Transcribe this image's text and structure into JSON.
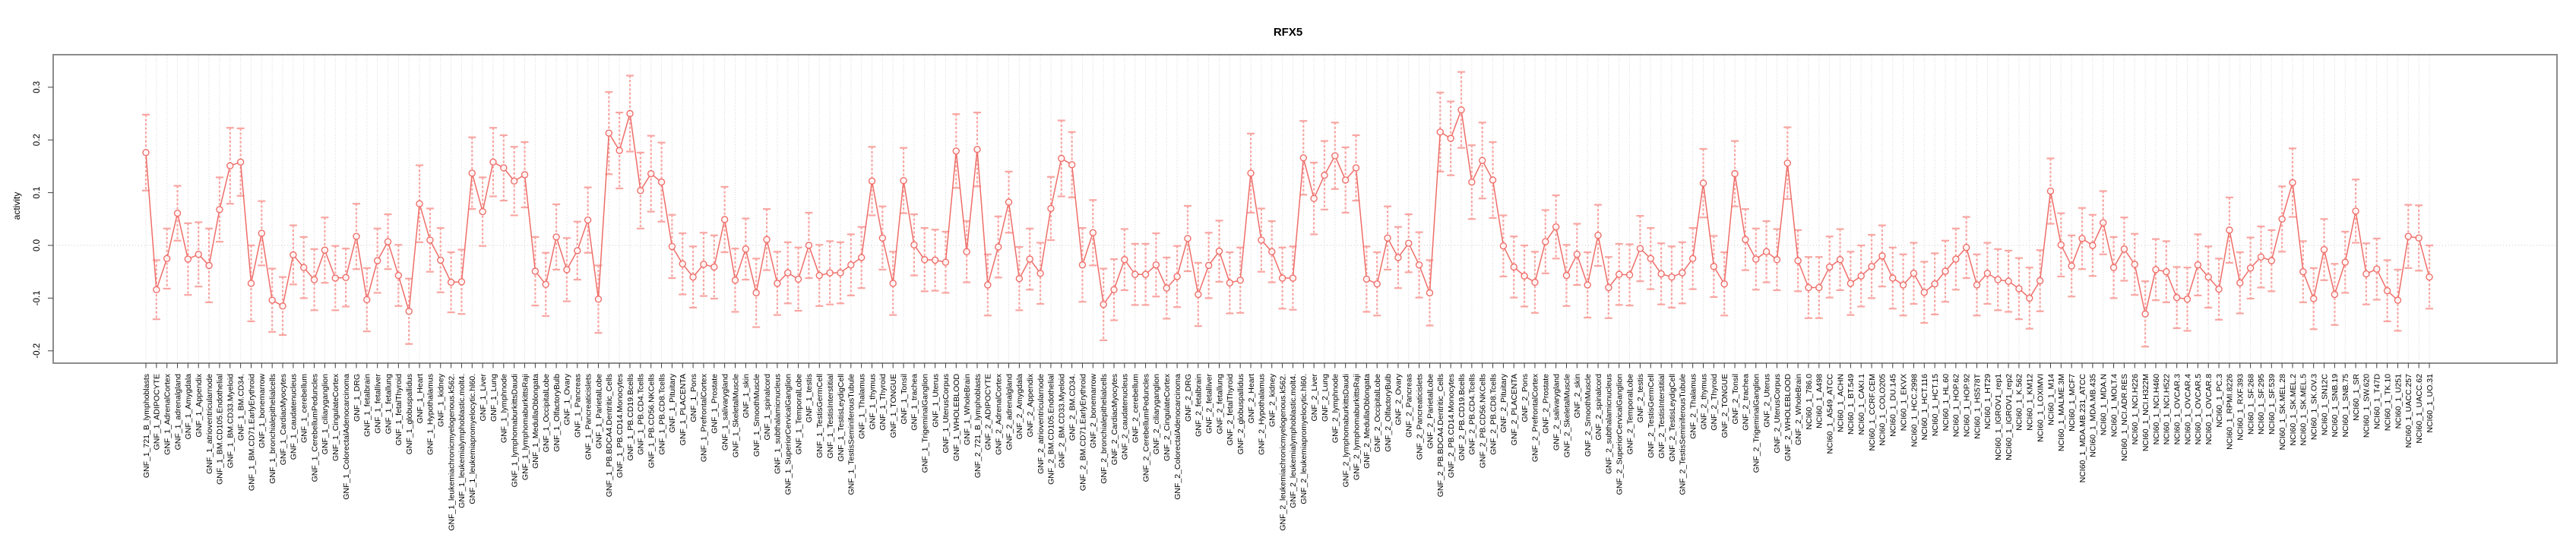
{
  "title": "RFX5",
  "chart_data": {
    "type": "line",
    "title": "RFX5",
    "xlabel": "",
    "ylabel": "activity",
    "ylim": [
      -0.223,
      0.362
    ],
    "grid": "vertical dashed gridline at every category; dotted horizontal line at 0",
    "legend_position": "none",
    "marker": "open-circle",
    "error_bars": true,
    "yticks": [
      {
        "v": 0.3,
        "label": "0.3"
      },
      {
        "v": 0.2,
        "label": "0.2"
      },
      {
        "v": 0.1,
        "label": "0.1"
      },
      {
        "v": 0.0,
        "label": "0.0"
      },
      {
        "v": -0.1,
        "label": "-0.1"
      },
      {
        "v": -0.2,
        "label": "-0.2"
      }
    ],
    "colors": {
      "series": "#ee6e69",
      "marker_fill": "#ffffff",
      "error_bar": "#f8a6a2",
      "grid": "#d9d9d9",
      "zero_line": "#c9c9c9",
      "frame": "#8c8c8c",
      "tick": "#404040",
      "text": "#000000",
      "background": "#ffffff"
    },
    "groups": [
      {
        "prefix": "GNF_1_",
        "names": [
          "721_B_lymphoblasts",
          "ADIPOCYTE",
          "AdrenalCortex",
          "adrenalgland",
          "Amygdala",
          "Appendix",
          "atrioventricularnode",
          "BM.CD105.Endothelial",
          "BM.CD33.Myeloid",
          "BM.CD34.",
          "BM.CD71.EarlyErythroid",
          "bonemarrow",
          "bronchialepithelialcells",
          "CardiacMyocytes",
          "caudatenucleus",
          "cerebellum",
          "CerebellumPeduncles",
          "ciliaryganglion",
          "CingulateCortex",
          "ColorectalAdenocarcinoma",
          "DRG",
          "fetalbrain",
          "fetalliver",
          "fetallung",
          "fetalThyroid",
          "globuspallidus",
          "Heart",
          "Hypothalamus",
          "kidney",
          "leukemiachronicmyelogenous.k562.",
          "leukemialymphoblastic.molt4.",
          "leukemiapromyelocytic.hl60.",
          "Liver",
          "Lung",
          "lymphnode",
          "lymphomaburkittsDaudi",
          "lymphomaburkittsRaji",
          "MedullaOblongata",
          "OccipitalLobe",
          "OlfactoryBulb",
          "Ovary",
          "Pancreas",
          "Pancreaticislets",
          "ParietalLobe",
          "PB.BDCA4.Dentritic_Cells",
          "PB.CD14.Monocytes",
          "PB.CD19.Bcells",
          "PB.CD4.Tcells",
          "PB.CD56.NKCells",
          "PB.CD8.Tcells",
          "Pituitary",
          "PLACENTA",
          "Pons",
          "PrefrontalCortex",
          "Prostate",
          "salivarygland",
          "SkeletalMuscle",
          "skin",
          "SmoothMuscle",
          "spinalcord",
          "subthalamicnucleus",
          "SuperiorCervicalGanglion",
          "TemporalLobe",
          "testis",
          "TestisGermCell",
          "TestisInterstitial",
          "TestisLeydigCell",
          "TestisSeminiferousTubule",
          "Thalamus",
          "thymus",
          "Thyroid",
          "TONGUE",
          "Tonsil",
          "trachea",
          "TrigeminalGanglion",
          "Uterus",
          "UterusCorpus",
          "WHOLEBLOOD",
          "WholeBrain"
        ]
      },
      {
        "prefix": "GNF_2_",
        "names": [
          "721_B_lymphoblasts",
          "ADIPOCYTE",
          "AdrenalCortex",
          "adrenalgland",
          "Amygdala",
          "Appendix",
          "atrioventricularnode",
          "BM.CD105.Endothelial",
          "BM.CD33.Myeloid",
          "BM.CD34.",
          "BM.CD71.EarlyErythroid",
          "bonemarrow",
          "bronchialepithelialcells",
          "CardiacMyocytes",
          "caudatenucleus",
          "cerebellum",
          "CerebellumPeduncles",
          "ciliaryganglion",
          "CingulateCortex",
          "ColorectalAdenocarcinoma",
          "DRG",
          "fetalbrain",
          "fetalliver",
          "fetallung",
          "fetalThyroid",
          "globuspallidus",
          "Heart",
          "Hypothalamus",
          "kidney",
          "leukemiachronicmyelogenous.k562.",
          "leukemialymphoblastic.molt4.",
          "leukemiapromyelocytic.hl60.",
          "Liver",
          "Lung",
          "lymphnode",
          "lymphomaburkittsDaudi",
          "lymphomaburkittsRaji",
          "MedullaOblongata",
          "OccipitalLobe",
          "OlfactoryBulb",
          "Ovary",
          "Pancreas",
          "Pancreaticislets",
          "ParietalLobe",
          "PB.BDCA4.Dentritic_Cells",
          "PB.CD14.Monocytes",
          "PB.CD19.Bcells",
          "PB.CD4.Tcells",
          "PB.CD56.NKCells",
          "PB.CD8.Tcells",
          "Pituitary",
          "PLACENTA",
          "Pons",
          "PrefrontalCortex",
          "Prostate",
          "salivarygland",
          "SkeletalMuscle",
          "skin",
          "SmoothMuscle",
          "spinalcord",
          "subthalamicnucleus",
          "SuperiorCervicalGanglion",
          "TemporalLobe",
          "testis",
          "TestisGermCell",
          "TestisInterstitial",
          "TestisLeydigCell",
          "TestisSeminiferousTubule",
          "Thalamus",
          "thymus",
          "Thyroid",
          "TONGUE",
          "Tonsil",
          "trachea",
          "TrigeminalGanglion",
          "Uterus",
          "UterusCorpus",
          "WHOLEBLOOD",
          "WholeBrain"
        ]
      },
      {
        "prefix": "NCI60_1_",
        "names": [
          "786.0",
          "A498",
          "A549_ATCC",
          "ACHN",
          "BT.549",
          "CAKI.1",
          "CCRF.CEM",
          "COLO205",
          "DU.145",
          "EKVX",
          "HCC.2998",
          "HCT.116",
          "HCT.15",
          "HL.60",
          "HOP.62",
          "HOP.92",
          "HS578T",
          "HT29",
          "IGROV1_rep1",
          "IGROV1_rep2",
          "K.562",
          "KM12",
          "LOXIMVI",
          "M14",
          "MALME.3M",
          "MCF7",
          "MDA.MB.231_ATCC",
          "MDA.MB.435",
          "MDA.N",
          "MOLT.4",
          "NCI.ADR.RES",
          "NCI.H226",
          "NCI.H322M",
          "NCI.H460",
          "NCI.H522",
          "OVCAR.3",
          "OVCAR.4",
          "OVCAR.5",
          "OVCAR.8",
          "PC.3",
          "RPMI.8226",
          "RXF.393",
          "SF.268",
          "SF.295",
          "SF.539",
          "SK.MEL.28",
          "SK.MEL.2",
          "SK.MEL.5",
          "SK.OV.3",
          "SN12C",
          "SNB.19",
          "SNB.75",
          "SR",
          "SW.620",
          "T47D",
          "TK.10",
          "U251",
          "UACC.257",
          "UACC.62",
          "UO.31"
        ]
      }
    ],
    "series": [
      {
        "name": "activity",
        "values": [
          0.176,
          -0.084,
          -0.025,
          0.061,
          -0.026,
          -0.017,
          -0.038,
          0.068,
          0.151,
          0.158,
          -0.072,
          0.023,
          -0.104,
          -0.115,
          -0.018,
          -0.042,
          -0.065,
          -0.009,
          -0.062,
          -0.061,
          0.017,
          -0.103,
          -0.029,
          0.007,
          -0.057,
          -0.125,
          0.079,
          0.01,
          -0.028,
          -0.07,
          -0.069,
          0.137,
          0.064,
          0.158,
          0.147,
          0.122,
          0.134,
          -0.049,
          -0.074,
          0.016,
          -0.046,
          -0.01,
          0.048,
          -0.102,
          0.213,
          0.18,
          0.25,
          0.104,
          0.136,
          0.12,
          -0.002,
          -0.035,
          -0.06,
          -0.036,
          -0.041,
          0.049,
          -0.066,
          -0.007,
          -0.09,
          0.011,
          -0.072,
          -0.052,
          -0.064,
          0.0,
          -0.057,
          -0.052,
          -0.052,
          -0.037,
          -0.023,
          0.122,
          0.014,
          -0.072,
          0.123,
          0.001,
          -0.027,
          -0.028,
          -0.032,
          0.179,
          -0.012,
          0.182,
          -0.075,
          -0.003,
          0.082,
          -0.063,
          -0.026,
          -0.053,
          0.07,
          0.165,
          0.153,
          -0.037,
          0.024,
          -0.112,
          -0.084,
          -0.027,
          -0.055,
          -0.055,
          -0.037,
          -0.081,
          -0.059,
          0.013,
          -0.093,
          -0.038,
          -0.011,
          -0.071,
          -0.066,
          0.137,
          0.01,
          -0.012,
          -0.062,
          -0.062,
          0.166,
          0.089,
          0.133,
          0.17,
          0.124,
          0.147,
          -0.064,
          -0.073,
          0.014,
          -0.023,
          0.004,
          -0.037,
          -0.09,
          0.215,
          0.203,
          0.257,
          0.12,
          0.161,
          0.124,
          -0.001,
          -0.041,
          -0.058,
          -0.07,
          0.007,
          0.035,
          -0.057,
          -0.017,
          -0.075,
          0.019,
          -0.08,
          -0.055,
          -0.056,
          -0.006,
          -0.025,
          -0.054,
          -0.06,
          -0.052,
          -0.025,
          0.118,
          -0.04,
          -0.073,
          0.136,
          0.011,
          -0.026,
          -0.012,
          -0.027,
          0.156,
          -0.029,
          -0.08,
          -0.08,
          -0.041,
          -0.027,
          -0.072,
          -0.058,
          -0.04,
          -0.02,
          -0.062,
          -0.075,
          -0.053,
          -0.089,
          -0.073,
          -0.049,
          -0.026,
          -0.004,
          -0.075,
          -0.053,
          -0.065,
          -0.068,
          -0.082,
          -0.1,
          -0.067,
          0.103,
          0.001,
          -0.039,
          0.013,
          0.0,
          0.043,
          -0.042,
          -0.007,
          -0.036,
          -0.13,
          -0.046,
          -0.05,
          -0.099,
          -0.102,
          -0.037,
          -0.06,
          -0.083,
          0.029,
          -0.071,
          -0.043,
          -0.022,
          -0.029,
          0.05,
          0.119,
          -0.05,
          -0.101,
          -0.008,
          -0.093,
          -0.032,
          0.065,
          -0.054,
          -0.045,
          -0.086,
          -0.104,
          0.017,
          0.014,
          -0.06
        ],
        "errors": [
          0.072,
          0.056,
          0.057,
          0.052,
          0.068,
          0.061,
          0.07,
          0.061,
          0.072,
          0.064,
          0.072,
          0.061,
          0.06,
          0.055,
          0.056,
          0.058,
          0.058,
          0.062,
          0.061,
          0.055,
          0.062,
          0.06,
          0.061,
          0.052,
          0.058,
          0.062,
          0.073,
          0.06,
          0.061,
          0.057,
          0.061,
          0.068,
          0.065,
          0.065,
          0.062,
          0.065,
          0.062,
          0.065,
          0.06,
          0.062,
          0.06,
          0.055,
          0.062,
          0.064,
          0.078,
          0.072,
          0.072,
          0.072,
          0.072,
          0.075,
          0.06,
          0.058,
          0.058,
          0.06,
          0.06,
          0.062,
          0.06,
          0.058,
          0.065,
          0.058,
          0.06,
          0.058,
          0.06,
          0.062,
          0.058,
          0.06,
          0.058,
          0.058,
          0.058,
          0.065,
          0.06,
          0.06,
          0.062,
          0.058,
          0.06,
          0.058,
          0.058,
          0.07,
          0.058,
          0.07,
          0.058,
          0.058,
          0.058,
          0.06,
          0.058,
          0.058,
          0.06,
          0.072,
          0.062,
          0.07,
          0.062,
          0.068,
          0.058,
          0.058,
          0.058,
          0.058,
          0.06,
          0.058,
          0.058,
          0.062,
          0.06,
          0.062,
          0.058,
          0.058,
          0.062,
          0.075,
          0.06,
          0.058,
          0.058,
          0.06,
          0.07,
          0.068,
          0.065,
          0.063,
          0.062,
          0.062,
          0.062,
          0.06,
          0.06,
          0.058,
          0.055,
          0.062,
          0.062,
          0.075,
          0.07,
          0.072,
          0.07,
          0.072,
          0.072,
          0.058,
          0.058,
          0.058,
          0.058,
          0.06,
          0.06,
          0.058,
          0.058,
          0.062,
          0.058,
          0.058,
          0.058,
          0.058,
          0.062,
          0.058,
          0.058,
          0.058,
          0.058,
          0.058,
          0.065,
          0.058,
          0.06,
          0.062,
          0.058,
          0.058,
          0.058,
          0.058,
          0.068,
          0.058,
          0.058,
          0.058,
          0.058,
          0.058,
          0.06,
          0.058,
          0.06,
          0.058,
          0.058,
          0.058,
          0.058,
          0.058,
          0.058,
          0.058,
          0.058,
          0.058,
          0.058,
          0.058,
          0.058,
          0.058,
          0.058,
          0.058,
          0.058,
          0.062,
          0.06,
          0.058,
          0.058,
          0.058,
          0.06,
          0.058,
          0.06,
          0.058,
          0.062,
          0.058,
          0.058,
          0.058,
          0.06,
          0.058,
          0.058,
          0.058,
          0.062,
          0.058,
          0.058,
          0.058,
          0.058,
          0.062,
          0.065,
          0.058,
          0.058,
          0.058,
          0.058,
          0.058,
          0.06,
          0.058,
          0.058,
          0.058,
          0.058,
          0.06,
          0.062,
          0.06
        ]
      }
    ]
  }
}
